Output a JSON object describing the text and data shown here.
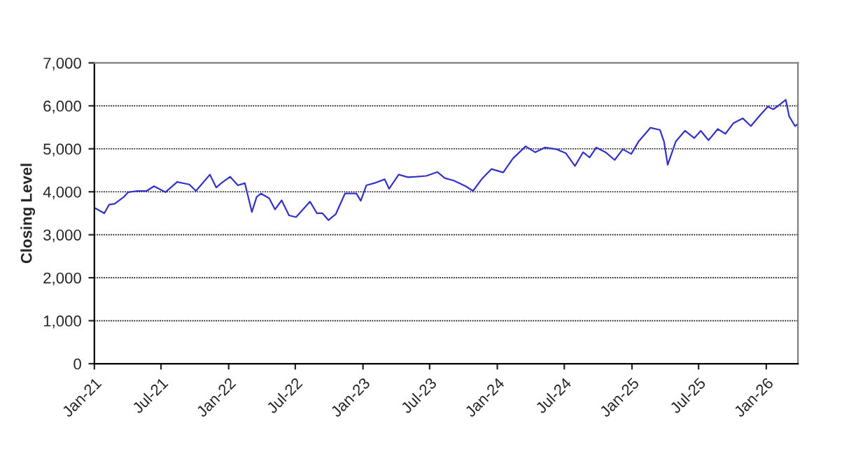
{
  "chart_data": {
    "type": "line",
    "ylabel": "Closing Level",
    "x": [
      "2021-01-01",
      "2021-01-28",
      "2021-02-10",
      "2021-02-25",
      "2021-03-22",
      "2021-04-03",
      "2021-04-28",
      "2021-05-23",
      "2021-06-12",
      "2021-07-13",
      "2021-08-14",
      "2021-09-16",
      "2021-10-04",
      "2021-11-11",
      "2021-11-28",
      "2021-12-13",
      "2022-01-05",
      "2022-01-26",
      "2022-02-14",
      "2022-03-05",
      "2022-03-18",
      "2022-03-30",
      "2022-04-21",
      "2022-05-07",
      "2022-05-25",
      "2022-06-14",
      "2022-07-03",
      "2022-08-10",
      "2022-08-29",
      "2022-09-13",
      "2022-09-29",
      "2022-10-19",
      "2022-11-13",
      "2022-12-14",
      "2022-12-26",
      "2023-01-10",
      "2023-02-04",
      "2023-03-01",
      "2023-03-13",
      "2023-04-08",
      "2023-05-03",
      "2023-05-27",
      "2023-06-22",
      "2023-07-22",
      "2023-08-11",
      "2023-09-05",
      "2023-10-07",
      "2023-10-27",
      "2023-11-21",
      "2023-12-16",
      "2024-01-17",
      "2024-02-12",
      "2024-03-18",
      "2024-04-13",
      "2024-05-09",
      "2024-06-10",
      "2024-07-05",
      "2024-07-30",
      "2024-08-21",
      "2024-09-08",
      "2024-09-26",
      "2024-10-21",
      "2024-11-15",
      "2024-12-07",
      "2024-12-30",
      "2025-01-19",
      "2025-02-20",
      "2025-03-18",
      "2025-03-29",
      "2025-04-08",
      "2025-04-30",
      "2025-05-25",
      "2025-06-19",
      "2025-07-07",
      "2025-07-28",
      "2025-08-22",
      "2025-09-12",
      "2025-10-04",
      "2025-10-29",
      "2025-11-20",
      "2025-12-13",
      "2026-01-05",
      "2026-01-20",
      "2026-02-07",
      "2026-02-23",
      "2026-03-04",
      "2026-03-20",
      "2026-03-27"
    ],
    "series": [
      {
        "color": "#3333cc",
        "values": [
          3630,
          3500,
          3700,
          3720,
          3880,
          3990,
          4020,
          4020,
          4130,
          3990,
          4230,
          4170,
          4020,
          4400,
          4100,
          4210,
          4350,
          4150,
          4200,
          3530,
          3880,
          3960,
          3850,
          3590,
          3800,
          3450,
          3410,
          3770,
          3500,
          3500,
          3340,
          3480,
          3960,
          3960,
          3790,
          4150,
          4210,
          4290,
          4070,
          4400,
          4340,
          4350,
          4370,
          4460,
          4320,
          4260,
          4130,
          4020,
          4310,
          4530,
          4450,
          4770,
          5060,
          4920,
          5030,
          4990,
          4900,
          4600,
          4920,
          4800,
          5030,
          4920,
          4740,
          4990,
          4880,
          5170,
          5490,
          5440,
          5170,
          4630,
          5170,
          5420,
          5250,
          5420,
          5200,
          5460,
          5350,
          5600,
          5710,
          5530,
          5760,
          5980,
          5920,
          6030,
          6140,
          5760,
          5530,
          5570
        ]
      }
    ],
    "xlim": [
      "2021-01-01",
      "2026-03-28"
    ],
    "xticks": [
      {
        "value": "2021-01-01",
        "label": "Jan-21"
      },
      {
        "value": "2021-07-01",
        "label": "Jul-21"
      },
      {
        "value": "2022-01-01",
        "label": "Jan-22"
      },
      {
        "value": "2022-07-01",
        "label": "Jul-22"
      },
      {
        "value": "2023-01-01",
        "label": "Jan-23"
      },
      {
        "value": "2023-07-01",
        "label": "Jul-23"
      },
      {
        "value": "2024-01-01",
        "label": "Jan-24"
      },
      {
        "value": "2024-07-01",
        "label": "Jul-24"
      },
      {
        "value": "2025-01-01",
        "label": "Jan-25"
      },
      {
        "value": "2025-07-01",
        "label": "Jul-25"
      },
      {
        "value": "2026-01-01",
        "label": "Jan-26"
      }
    ],
    "ylim": [
      0,
      7000
    ],
    "yticks": [
      0,
      {
        "value": 1000,
        "label": "1,000"
      },
      {
        "value": 2000,
        "label": "2,000"
      },
      {
        "value": 3000,
        "label": "3,000"
      },
      {
        "value": 4000,
        "label": "4,000"
      },
      {
        "value": 5000,
        "label": "5,000"
      },
      {
        "value": 6000,
        "label": "6,000"
      },
      {
        "value": 7000,
        "label": "7,000"
      }
    ],
    "grid": "y",
    "line_style": "solid",
    "marker": "none",
    "legend": false
  }
}
